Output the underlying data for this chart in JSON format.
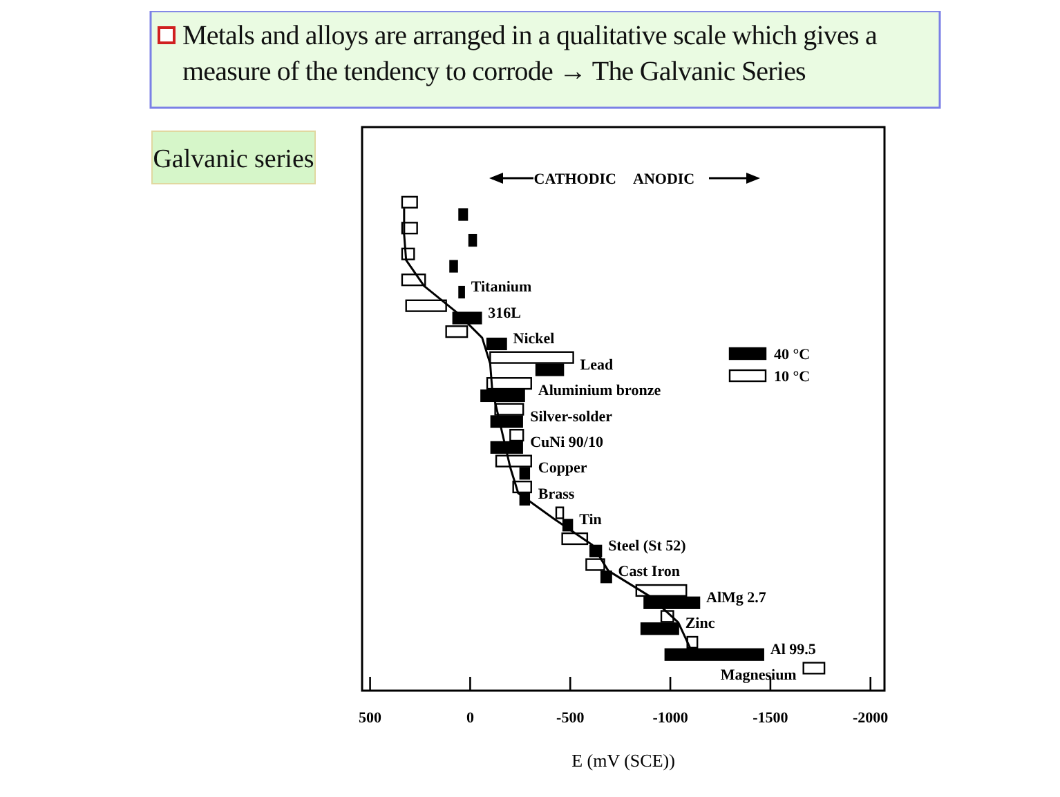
{
  "chart_data": {
    "type": "bar",
    "orientation": "horizontal",
    "title": "Metals and alloys are arranged in a qualitative scale which gives a measure of the tendency to corrode → The Galvanic Series",
    "subtitle": "Galvanic series",
    "xlabel": "E (mV (SCE))",
    "annotations": [
      "CATHODIC",
      "ANODIC"
    ],
    "categories": [
      null,
      null,
      null,
      "Titanium",
      "316L",
      "Nickel",
      "Lead",
      "Aluminium bronze",
      "Silver-solder",
      "CuNi 90/10",
      "Copper",
      "Brass",
      "Tin",
      "Steel (St 52)",
      "Cast Iron",
      "AlMg 2.7",
      "Zinc",
      "Al 99.5",
      "Magnesium"
    ],
    "xlim": [
      540,
      -2070
    ],
    "xticks": [
      500,
      0,
      {
        "value": -500,
        "label": "-500"
      },
      {
        "value": -1000,
        "label": "-1000"
      },
      {
        "value": -1500,
        "label": "-1500"
      },
      {
        "value": -2000,
        "label": "-2000"
      }
    ],
    "legend": "right",
    "series": [
      {
        "name": "10 °C",
        "color": "#ffffff",
        "base": [
          340,
          340,
          340,
          340,
          320,
          120,
          -100,
          -85,
          -125,
          -200,
          -130,
          -215,
          -430,
          -460,
          -580,
          -830,
          -955,
          -1085,
          -1665
        ],
        "values": [
          -75,
          -75,
          -60,
          -115,
          -200,
          -105,
          -415,
          -220,
          -140,
          -65,
          -175,
          -90,
          -35,
          -125,
          -90,
          -250,
          -60,
          -50,
          -105
        ]
      },
      {
        "name": "40 °C",
        "color": "#000000",
        "base": [
          55,
          5,
          100,
          55,
          85,
          -85,
          -330,
          -55,
          -105,
          -105,
          -250,
          -250,
          -465,
          -600,
          -655,
          -870,
          -855,
          -975,
          null
        ],
        "values": [
          -40,
          -35,
          -35,
          -25,
          -140,
          -95,
          -135,
          -215,
          -155,
          -155,
          -45,
          -45,
          -45,
          -55,
          -50,
          -275,
          -185,
          -490,
          null
        ]
      },
      {
        "type": "line",
        "color": "#000000",
        "values": [
          330,
          330,
          320,
          230,
          70,
          -60,
          -100,
          -110,
          -140,
          -170,
          -200,
          -240,
          -420,
          -610,
          -690,
          -900,
          -1040,
          -1100,
          null
        ]
      }
    ]
  }
}
